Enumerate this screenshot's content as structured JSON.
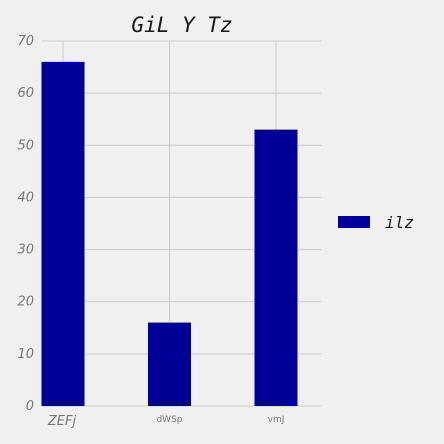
{
  "chart_data": {
    "type": "bar",
    "title": "GiL Y Tz",
    "xlabel": "",
    "ylabel": "",
    "categories": [
      "ZEFj",
      "dWSp",
      "vmJ"
    ],
    "series": [
      {
        "name": "ilz",
        "values": [
          66,
          16,
          53
        ],
        "color": "#000099"
      }
    ],
    "ylim": [
      0,
      70
    ],
    "yticks": [
      "0",
      "10",
      "20",
      "30",
      "40",
      "50",
      "60",
      "70"
    ],
    "grid": true,
    "legend_position": "right"
  }
}
